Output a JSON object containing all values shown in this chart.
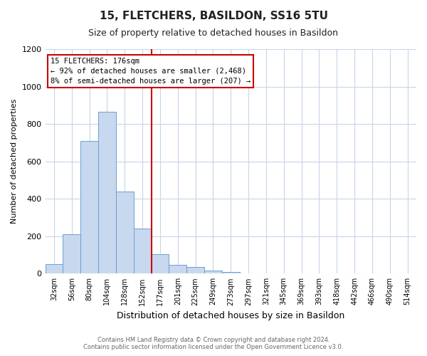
{
  "title": "15, FLETCHERS, BASILDON, SS16 5TU",
  "subtitle": "Size of property relative to detached houses in Basildon",
  "xlabel": "Distribution of detached houses by size in Basildon",
  "ylabel": "Number of detached properties",
  "bar_labels": [
    "32sqm",
    "56sqm",
    "80sqm",
    "104sqm",
    "128sqm",
    "152sqm",
    "177sqm",
    "201sqm",
    "225sqm",
    "249sqm",
    "273sqm",
    "297sqm",
    "321sqm",
    "345sqm",
    "369sqm",
    "393sqm",
    "418sqm",
    "442sqm",
    "466sqm",
    "490sqm",
    "514sqm"
  ],
  "bar_values": [
    50,
    210,
    710,
    865,
    440,
    240,
    105,
    48,
    37,
    18,
    10,
    0,
    0,
    0,
    0,
    0,
    0,
    0,
    0,
    0,
    0
  ],
  "bar_color": "#c8d8ee",
  "bar_edge_color": "#6a9fd4",
  "property_line_x": 6,
  "property_line_label": "15 FLETCHERS: 176sqm",
  "annotation_line1": "← 92% of detached houses are smaller (2,468)",
  "annotation_line2": "8% of semi-detached houses are larger (207) →",
  "annotation_box_color": "#ffffff",
  "annotation_box_edge": "#cc0000",
  "vline_color": "#cc0000",
  "ylim": [
    0,
    1200
  ],
  "yticks": [
    0,
    200,
    400,
    600,
    800,
    1000,
    1200
  ],
  "footer1": "Contains HM Land Registry data © Crown copyright and database right 2024.",
  "footer2": "Contains public sector information licensed under the Open Government Licence v3.0.",
  "bg_color": "#ffffff",
  "grid_color": "#c8d4e8"
}
